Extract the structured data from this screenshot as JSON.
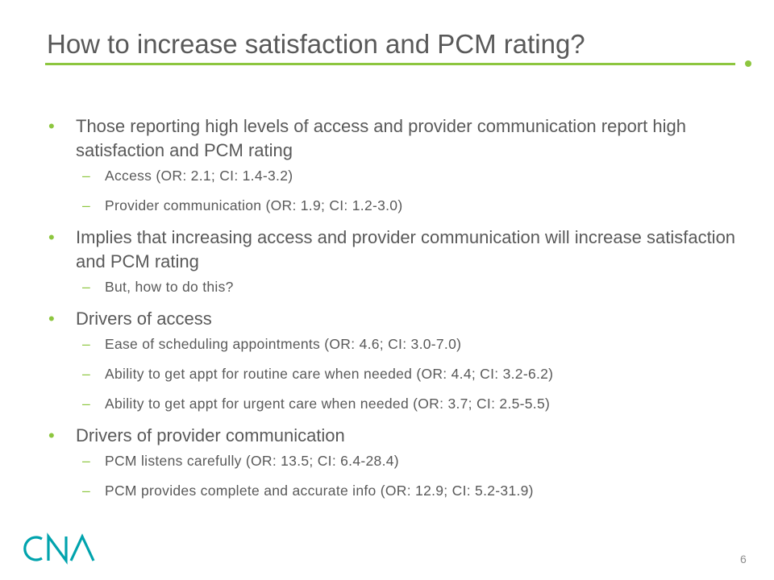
{
  "slide": {
    "title": "How to increase satisfaction and PCM rating?",
    "page_number": "6",
    "logo_text": "CNA"
  },
  "bullets": [
    {
      "text": "Those reporting high levels of access and provider communication report high satisfaction and PCM rating",
      "subitems": [
        "Access (OR: 2.1; CI: 1.4-3.2)",
        "Provider communication (OR: 1.9; CI: 1.2-3.0)"
      ]
    },
    {
      "text": "Implies that increasing access and provider communication will increase satisfaction and PCM rating",
      "subitems": [
        "But, how to do this?"
      ]
    },
    {
      "text": "Drivers of access",
      "subitems": [
        "Ease of scheduling appointments (OR: 4.6; CI: 3.0-7.0)",
        "Ability to get appt for routine care when needed (OR: 4.4; CI: 3.2-6.2)",
        "Ability to get appt for urgent care when needed (OR: 3.7; CI: 2.5-5.5)"
      ]
    },
    {
      "text": "Drivers of provider communication",
      "subitems": [
        "PCM listens carefully (OR: 13.5; CI: 6.4-28.4)",
        "PCM provides complete and accurate info (OR: 12.9; CI: 5.2-31.9)"
      ]
    }
  ],
  "colors": {
    "accent": "#8dc63f",
    "text": "#595959",
    "logo": "#00a3ad"
  }
}
